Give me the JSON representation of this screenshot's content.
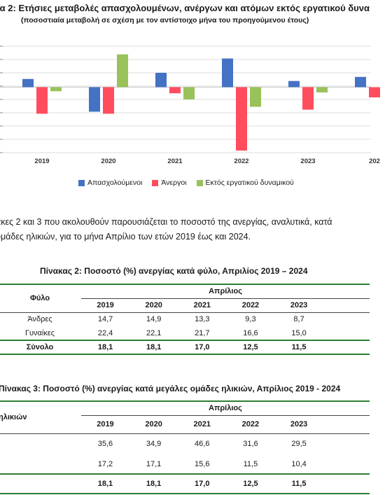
{
  "chart": {
    "title": "ια 2: Ετήσιες μεταβολές απασχολουμένων, ανέργων και ατόμων εκτός εργατικού δυνα",
    "subtitle": "(ποσοστιαία μεταβολή σε σχέση με τον αντίστοιχο μήνα του προηγούμενου έτους)"
  },
  "chart_data": {
    "type": "bar",
    "categories": [
      "2019",
      "2020",
      "2021",
      "2022",
      "2023",
      "202"
    ],
    "series": [
      {
        "name": "Απασχολούμενοι",
        "color": "#4472c4",
        "values": [
          2.0,
          -6.0,
          3.5,
          7.0,
          1.5,
          2.5
        ]
      },
      {
        "name": "Άνεργοι",
        "color": "#ff4d5e",
        "values": [
          -6.5,
          -6.5,
          -1.5,
          -15.5,
          -5.5,
          -2.5
        ]
      },
      {
        "name": "Εκτός εργατικού δυναμικού",
        "color": "#99c25a",
        "values": [
          -1.0,
          8.0,
          -3.0,
          -4.8,
          -1.3,
          null
        ]
      }
    ],
    "ylim": [
      -16,
      10
    ],
    "grid": true,
    "legend": "bottom"
  },
  "paragraph": {
    "line1": "ακες 2 και 3 που ακολουθούν παρουσιάζεται το ποσοστό της ανεργίας, αναλυτικά, κατά",
    "line2": "ομάδες ηλικιών, για το μήνα Απρίλιο των ετών 2019 έως και 2024."
  },
  "table2": {
    "title": "Πίνακας 2: Ποσοστό (%) ανεργίας κατά φύλο, Απριλίος 2019 – 2024",
    "row_header": "Φύλο",
    "group_header": "Απρίλιος",
    "years": [
      "2019",
      "2020",
      "2021",
      "2022",
      "2023"
    ],
    "rows": [
      {
        "label": "Άνδρες",
        "values": [
          "14,7",
          "14,9",
          "13,3",
          "9,3",
          "8,7"
        ]
      },
      {
        "label": "Γυναίκες",
        "values": [
          "22,4",
          "22,1",
          "21,7",
          "16,6",
          "15,0"
        ]
      }
    ],
    "total": {
      "label": "Σύνολο",
      "values": [
        "18,1",
        "18,1",
        "17,0",
        "12,5",
        "11,5"
      ]
    }
  },
  "table3": {
    "title": "Πίνακας 3: Ποσοστό (%) ανεργίας κατά μεγάλες ομάδες ηλικιών, Απρίλιος 2019 - 2024",
    "row_header": "ηλικιών",
    "group_header": "Απρίλιος",
    "years": [
      "2019",
      "2020",
      "2021",
      "2022",
      "2023"
    ],
    "rows": [
      {
        "label": "",
        "values": [
          "35,6",
          "34,9",
          "46,6",
          "31,6",
          "29,5"
        ]
      },
      {
        "label": "",
        "values": [
          "17,2",
          "17,1",
          "15,6",
          "11,5",
          "10,4"
        ]
      }
    ],
    "total": {
      "label": "",
      "values": [
        "18,1",
        "18,1",
        "17,0",
        "12,5",
        "11,5"
      ]
    }
  }
}
